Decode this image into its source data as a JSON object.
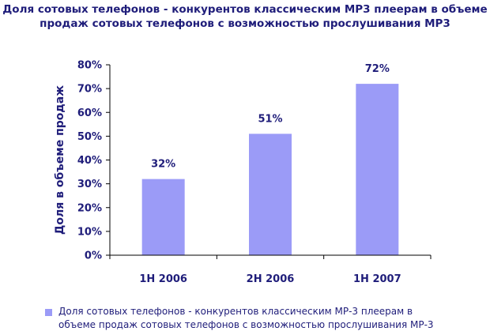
{
  "title": {
    "line1": "Доля сотовых телефонов - конкурентов классическим МР3 плеерам в объеме",
    "line2": "продаж сотовых телефонов с возможностью прослушивания МР3"
  },
  "colors": {
    "bar": "#9b9bf7",
    "text": "#1f1d7a",
    "axis": "#000000"
  },
  "chart_data": {
    "type": "bar",
    "categories": [
      "1H 2006",
      "2H 2006",
      "1H 2007"
    ],
    "series": [
      {
        "name": "Доля сотовых телефонов - конкурентов классическим МР-3 плеерам в объеме продаж сотовых телефонов с возможностью прослушивания МР-3",
        "values": [
          32,
          51,
          72
        ]
      }
    ],
    "data_labels": [
      "32%",
      "51%",
      "72%"
    ],
    "ylabel": "Доля в объеме продаж",
    "ylim": [
      0,
      80
    ],
    "yticks": [
      "0%",
      "10%",
      "20%",
      "30%",
      "40%",
      "50%",
      "60%",
      "70%",
      "80%"
    ],
    "grid": false,
    "legend_position": "bottom"
  },
  "legend": {
    "line1": "Доля сотовых телефонов - конкурентов классическим МР-3 плеерам в",
    "line2": "объеме продаж сотовых телефонов с возможностью прослушивания МР-3"
  }
}
